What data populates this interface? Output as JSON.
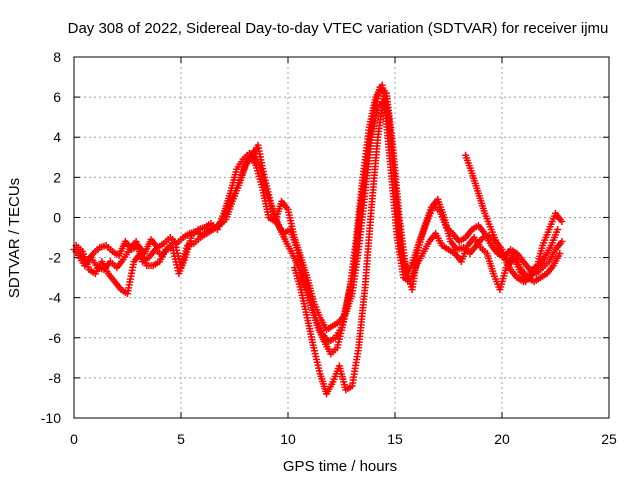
{
  "chart_data": {
    "type": "scatter",
    "title": "Day 308 of 2022, Sidereal Day-to-day VTEC variation (SDTVAR) for receiver ijmu",
    "xlabel": "GPS time / hours",
    "ylabel": "SDTVAR / TECUs",
    "xlim": [
      0,
      25
    ],
    "ylim": [
      -10,
      8
    ],
    "x_ticks": [
      0,
      5,
      10,
      15,
      20,
      25
    ],
    "y_ticks": [
      -10,
      -8,
      -6,
      -4,
      -2,
      0,
      2,
      4,
      6,
      8
    ],
    "grid": true,
    "marker": "+",
    "colors": {
      "series": "#ff0000",
      "grid": "#a0a0a0",
      "axis": "#000000"
    },
    "series": [
      {
        "x": [
          0,
          0.3,
          0.6,
          0.9,
          1.2,
          1.5,
          1.8,
          2.1,
          2.4,
          2.7,
          3.0,
          3.3,
          3.6,
          3.9,
          4.2,
          4.5,
          4.8,
          5.1,
          5.4,
          5.7,
          6.0,
          6.3,
          6.6,
          6.9,
          7.2,
          7.5,
          7.8,
          8.1,
          8.4,
          8.7,
          9.0,
          9.3,
          9.6,
          9.9,
          10.2,
          10.5,
          10.8,
          11.1,
          11.4,
          11.7,
          12.0,
          12.3,
          12.6,
          12.9,
          13.2,
          13.5,
          13.8,
          14.1,
          14.4,
          14.7,
          15.0,
          15.3,
          15.6,
          15.9,
          16.2,
          16.5,
          16.8,
          17.1,
          17.4,
          17.7,
          18.0,
          18.3,
          18.6,
          18.9,
          19.2,
          19.5,
          19.8,
          20.1,
          20.4,
          20.7,
          21.0,
          21.3,
          21.6,
          21.9,
          22.2,
          22.5,
          22.8
        ],
        "y": [
          -1.6,
          -1.9,
          -2.2,
          -1.8,
          -1.5,
          -1.4,
          -1.7,
          -1.9,
          -1.2,
          -1.6,
          -1.4,
          -1.8,
          -1.1,
          -1.5,
          -1.3,
          -1.0,
          -1.3,
          -1.0,
          -0.8,
          -0.7,
          -0.9,
          -0.6,
          -0.5,
          -0.2,
          0.5,
          1.2,
          2.0,
          2.8,
          3.3,
          2.5,
          1.2,
          0.3,
          -0.5,
          -1.2,
          -1.8,
          -2.5,
          -3.5,
          -4.5,
          -5.5,
          -6.2,
          -6.8,
          -6.5,
          -5.2,
          -3.5,
          -1.0,
          2.0,
          4.5,
          6.0,
          6.6,
          5.0,
          1.5,
          -1.8,
          -2.8,
          -2.0,
          -1.0,
          -0.2,
          0.6,
          0.3,
          -0.5,
          -0.8,
          -1.2,
          -1.0,
          -0.6,
          -0.4,
          -0.8,
          -1.4,
          -1.8,
          -2.0,
          -1.6,
          -1.8,
          -2.2,
          -2.6,
          -2.8,
          -2.5,
          -2.2,
          -1.6,
          -1.2
        ]
      },
      {
        "x": [
          0.2,
          0.5,
          0.8,
          1.1,
          1.4,
          1.7,
          2.0,
          2.3,
          2.6,
          2.9,
          3.2,
          3.5,
          3.8,
          4.1,
          4.4,
          4.7,
          5.0,
          5.3,
          5.6,
          5.9,
          6.2,
          6.5,
          6.8,
          7.1,
          7.4,
          7.7,
          8.0,
          8.3,
          8.6,
          8.9,
          9.2,
          9.5,
          9.8,
          10.1,
          10.4,
          10.7,
          11.0,
          11.3,
          11.6,
          11.9,
          12.2,
          12.5,
          12.8,
          13.1,
          13.4,
          13.7,
          14.0,
          14.3,
          14.6,
          14.9,
          15.2,
          15.5,
          15.8,
          16.1,
          16.4,
          16.7,
          17.0,
          17.3,
          17.6,
          17.9,
          18.2,
          18.5,
          18.8,
          19.1,
          19.4,
          19.7,
          20.0,
          20.3,
          20.6,
          20.9,
          21.2,
          21.5,
          21.8,
          22.1,
          22.4,
          22.7
        ],
        "y": [
          -1.9,
          -2.4,
          -2.0,
          -2.5,
          -2.6,
          -2.2,
          -2.5,
          -2.1,
          -1.6,
          -1.2,
          -2.2,
          -2.0,
          -1.6,
          -1.9,
          -1.5,
          -1.2,
          -2.5,
          -1.4,
          -1.3,
          -1.0,
          -0.8,
          -0.6,
          -0.4,
          -0.1,
          0.8,
          1.6,
          2.6,
          3.0,
          3.6,
          2.0,
          0.7,
          -0.3,
          -0.8,
          -0.6,
          -1.5,
          -2.8,
          -4.0,
          -5.0,
          -5.8,
          -6.2,
          -6.0,
          -5.5,
          -4.0,
          -2.5,
          0.5,
          3.0,
          5.2,
          6.5,
          6.2,
          3.5,
          0.0,
          -2.5,
          -3.6,
          -1.5,
          -0.4,
          0.5,
          0.9,
          0.0,
          -1.2,
          -1.6,
          -1.5,
          -1.8,
          -1.4,
          -1.0,
          -0.9,
          -1.2,
          -1.6,
          -2.4,
          -2.0,
          -2.6,
          -3.0,
          -3.2,
          -3.0,
          -2.8,
          -2.4,
          -1.8
        ]
      },
      {
        "x": [
          0.1,
          0.4,
          0.7,
          1.0,
          1.3,
          1.6,
          1.9,
          2.2,
          2.5,
          2.8,
          3.1,
          3.4,
          3.7,
          4.0,
          4.3,
          4.6,
          4.9,
          5.2,
          5.5,
          5.8,
          6.1,
          6.4,
          6.7,
          7.0,
          7.3,
          7.6,
          7.9,
          8.2,
          8.5,
          8.8,
          9.1,
          9.4,
          9.7,
          10.0,
          10.3,
          10.6,
          10.9,
          11.2,
          11.5,
          11.8,
          12.1,
          12.4,
          12.7,
          13.0,
          13.3,
          13.6,
          13.9,
          14.2,
          14.5,
          14.8,
          15.1,
          15.4,
          15.7,
          16.0,
          16.3,
          16.6,
          16.9,
          17.2,
          17.5,
          17.8,
          18.1,
          18.4,
          18.7,
          19.0,
          19.3,
          19.6,
          19.9,
          20.2,
          20.5,
          20.8,
          21.1,
          21.4,
          21.7,
          22.0,
          22.3,
          22.6
        ],
        "y": [
          -1.4,
          -1.7,
          -2.6,
          -2.8,
          -2.2,
          -2.8,
          -3.2,
          -3.6,
          -3.8,
          -2.2,
          -1.8,
          -2.4,
          -2.4,
          -2.2,
          -1.6,
          -1.5,
          -2.8,
          -2.0,
          -0.9,
          -0.6,
          -0.5,
          -0.3,
          -0.6,
          0.2,
          1.2,
          2.4,
          2.9,
          3.2,
          2.6,
          1.5,
          0.0,
          -0.2,
          0.8,
          0.4,
          -1.0,
          -2.0,
          -3.0,
          -4.2,
          -5.0,
          -5.6,
          -5.4,
          -5.2,
          -4.8,
          -3.8,
          -1.6,
          1.2,
          4.0,
          5.5,
          5.8,
          2.5,
          -1.0,
          -3.0,
          -3.2,
          -2.4,
          -1.8,
          -1.2,
          -0.8,
          -1.4,
          -1.6,
          -1.8,
          -2.2,
          -1.4,
          -1.0,
          -1.5,
          -1.8,
          -2.8,
          -3.6,
          -2.5,
          -1.8,
          -2.6,
          -3.2,
          -2.6,
          -2.4,
          -2.0,
          -1.4,
          -0.6
        ]
      },
      {
        "x": [
          10.3,
          10.6,
          10.9,
          11.2,
          11.5,
          11.8,
          12.1,
          12.4,
          12.7,
          13.0,
          13.3,
          13.6,
          13.9,
          14.2,
          14.5
        ],
        "y": [
          -2.5,
          -3.6,
          -5.0,
          -6.5,
          -7.8,
          -8.8,
          -8.2,
          -7.4,
          -8.6,
          -8.4,
          -6.5,
          -3.5,
          0.5,
          4.0,
          6.2
        ]
      },
      {
        "x": [
          18.3,
          18.6,
          18.9,
          19.2,
          19.5,
          19.8,
          20.1,
          20.4,
          20.7,
          21.0,
          21.3,
          21.6,
          21.9,
          22.2,
          22.5,
          22.8
        ],
        "y": [
          3.1,
          2.2,
          1.2,
          0.2,
          -0.6,
          -1.4,
          -2.0,
          -2.6,
          -3.0,
          -3.2,
          -3.0,
          -2.6,
          -1.4,
          -0.6,
          0.2,
          -0.2
        ]
      }
    ]
  }
}
